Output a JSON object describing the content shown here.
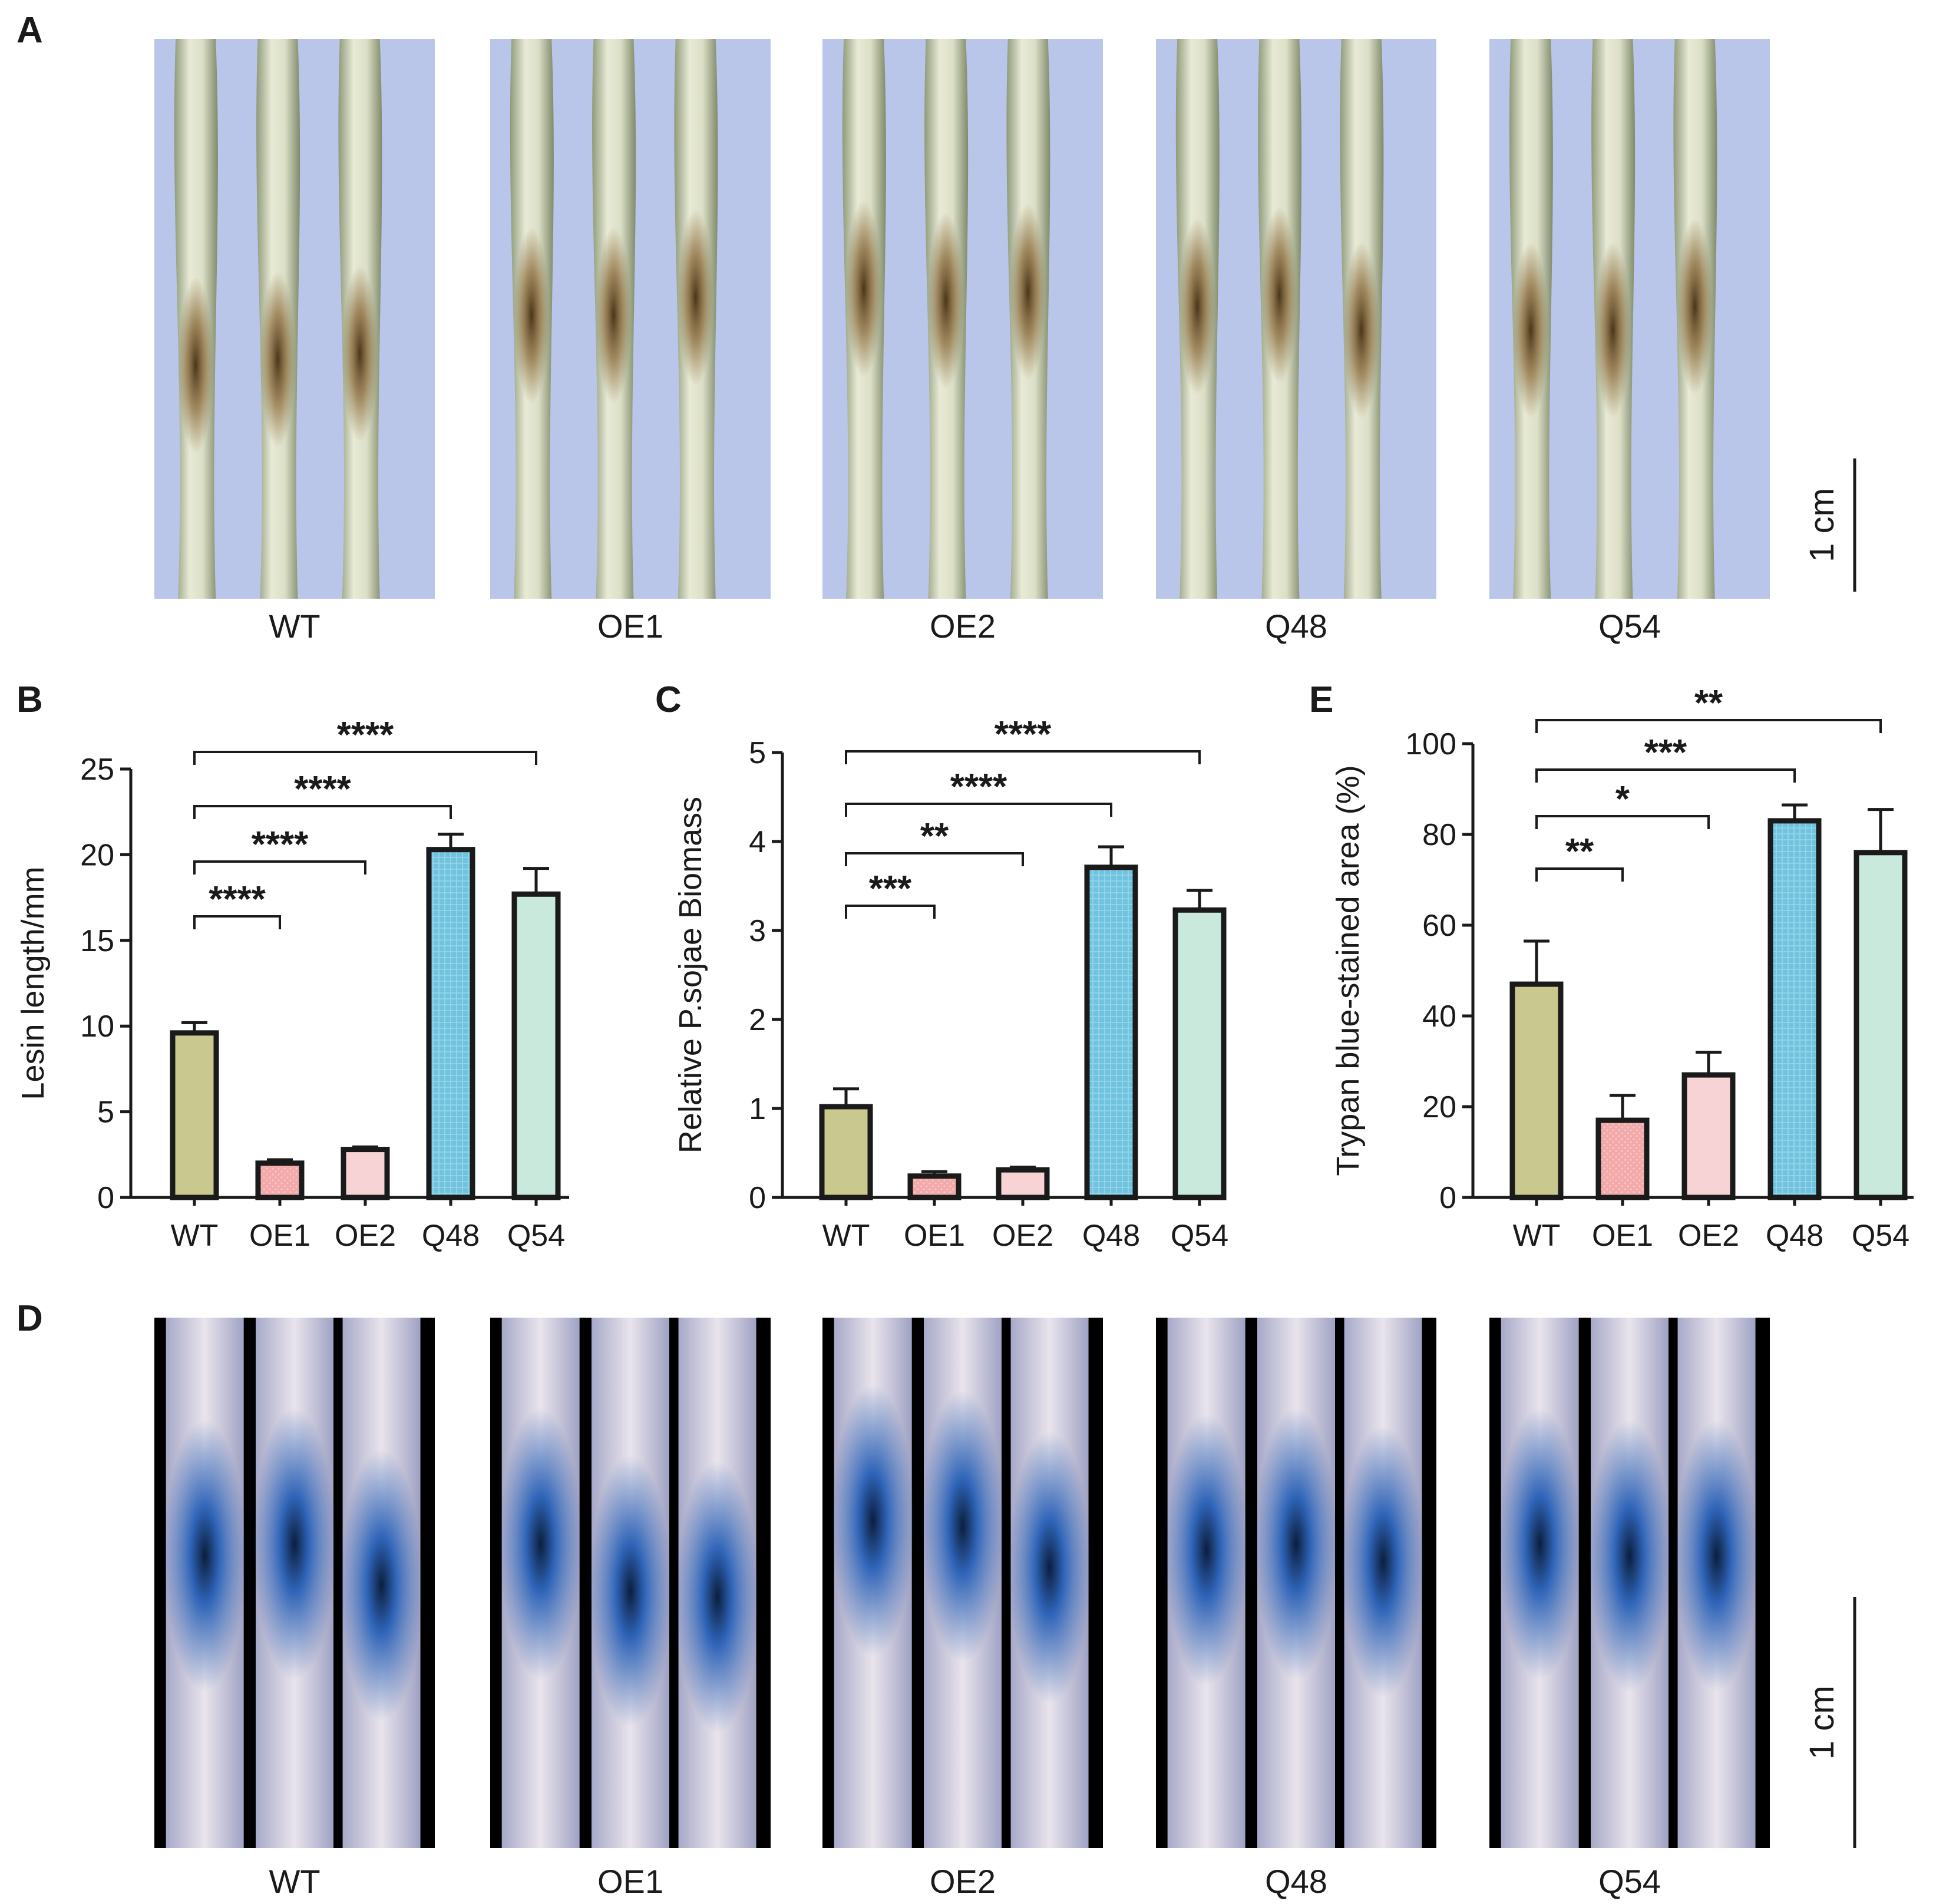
{
  "panel_letters": [
    "A",
    "B",
    "C",
    "E",
    "D"
  ],
  "photo_row_a": {
    "labels": [
      "WT",
      "OE1",
      "OE2",
      "Q48",
      "Q54"
    ],
    "scale_bar_label": "1 cm",
    "background_color": "#b9c6ea"
  },
  "photo_row_d": {
    "labels": [
      "WT",
      "OE1",
      "OE2",
      "Q48",
      "Q54"
    ],
    "scale_bar_label": "1 cm",
    "background_color": "#000000",
    "stain_color": "#2f64b8"
  },
  "chart_data": [
    {
      "panel": "B",
      "type": "bar",
      "categories": [
        "WT",
        "OE1",
        "OE2",
        "Q48",
        "Q54"
      ],
      "values": [
        9.6,
        2.0,
        2.8,
        20.3,
        17.7
      ],
      "errors": [
        0.6,
        0.2,
        0.15,
        0.9,
        1.5
      ],
      "colors": [
        "#c9c98f",
        "#f3a9a9",
        "#f8d3d6",
        "#6fc3df",
        "#c9e9dd"
      ],
      "xlabel": "",
      "ylabel": "Lesin length/mm",
      "ylim": [
        0,
        25
      ],
      "yticks": [
        "0",
        "5",
        "10",
        "15",
        "20",
        "25"
      ],
      "significance": [
        {
          "from": 0,
          "to": 1,
          "label": "****"
        },
        {
          "from": 0,
          "to": 2,
          "label": "****"
        },
        {
          "from": 0,
          "to": 3,
          "label": "****"
        },
        {
          "from": 0,
          "to": 4,
          "label": "****"
        }
      ]
    },
    {
      "panel": "C",
      "type": "bar",
      "categories": [
        "WT",
        "OE1",
        "OE2",
        "Q48",
        "Q54"
      ],
      "values": [
        1.02,
        0.24,
        0.31,
        3.71,
        3.23
      ],
      "errors": [
        0.2,
        0.05,
        0.03,
        0.23,
        0.22
      ],
      "colors": [
        "#c9c98f",
        "#f3a9a9",
        "#f8d3d6",
        "#6fc3df",
        "#c9e9dd"
      ],
      "xlabel": "",
      "ylabel": "Relative P.sojae Biomass",
      "ylim": [
        0,
        5
      ],
      "yticks": [
        "0",
        "1",
        "2",
        "3",
        "4",
        "5"
      ],
      "significance": [
        {
          "from": 0,
          "to": 1,
          "label": "***"
        },
        {
          "from": 0,
          "to": 2,
          "label": "**"
        },
        {
          "from": 0,
          "to": 3,
          "label": "****"
        },
        {
          "from": 0,
          "to": 4,
          "label": "****"
        }
      ]
    },
    {
      "panel": "E",
      "type": "bar",
      "categories": [
        "WT",
        "OE1",
        "OE2",
        "Q48",
        "Q54"
      ],
      "values": [
        47,
        17,
        27,
        83,
        76
      ],
      "errors": [
        9.5,
        5.5,
        5.0,
        3.5,
        9.5
      ],
      "colors": [
        "#c9c98f",
        "#f3a9a9",
        "#f8d3d6",
        "#6fc3df",
        "#c9e9dd"
      ],
      "xlabel": "",
      "ylabel": "Trypan blue-stained area (%)",
      "ylim": [
        0,
        100
      ],
      "yticks": [
        "0",
        "20",
        "40",
        "60",
        "80",
        "100"
      ],
      "significance": [
        {
          "from": 0,
          "to": 1,
          "label": "**"
        },
        {
          "from": 0,
          "to": 2,
          "label": "*"
        },
        {
          "from": 0,
          "to": 3,
          "label": "***"
        },
        {
          "from": 0,
          "to": 4,
          "label": "**"
        }
      ]
    }
  ]
}
